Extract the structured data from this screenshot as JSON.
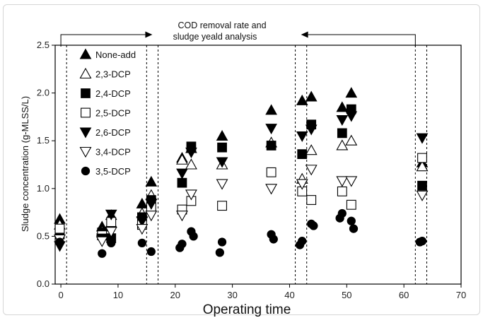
{
  "chart_data": {
    "type": "scatter",
    "title": "",
    "xlabel": "Operating time",
    "ylabel": "Sludge concentration (g-MLSS/L)",
    "xlim": [
      0,
      70
    ],
    "ylim": [
      0.0,
      2.5
    ],
    "x_ticks": [
      "0",
      "10",
      "20",
      "30",
      "40",
      "50",
      "60",
      "70"
    ],
    "y_ticks": [
      "0.0",
      "0.5",
      "1.0",
      "1.5",
      "2.0",
      "2.5"
    ],
    "legend_position": "top-left",
    "annotation": {
      "line1": "COD removal rate and",
      "line2": "sludge yeald analysis",
      "dashed_lines_x": [
        -1,
        1,
        15,
        17,
        41,
        43,
        62,
        64
      ],
      "span": [
        0,
        62
      ]
    },
    "series": [
      {
        "name": "None-add",
        "marker": "triangle-up-filled",
        "points": [
          [
            0,
            0.68
          ],
          [
            7,
            0.6
          ],
          [
            9,
            0.72
          ],
          [
            14,
            0.84
          ],
          [
            16,
            1.07
          ],
          [
            21,
            1.32
          ],
          [
            23,
            1.42
          ],
          [
            28,
            1.55
          ],
          [
            37,
            1.82
          ],
          [
            42,
            1.92
          ],
          [
            44,
            1.96
          ],
          [
            49,
            1.85
          ],
          [
            51,
            2.0
          ],
          [
            63,
            1.27
          ]
        ]
      },
      {
        "name": "2,3-DCP",
        "marker": "triangle-up-open",
        "points": [
          [
            0,
            0.62
          ],
          [
            7,
            0.55
          ],
          [
            9,
            0.64
          ],
          [
            14,
            0.74
          ],
          [
            16,
            0.93
          ],
          [
            21,
            1.3
          ],
          [
            23,
            1.25
          ],
          [
            28,
            1.25
          ],
          [
            37,
            1.48
          ],
          [
            42,
            1.1
          ],
          [
            44,
            1.4
          ],
          [
            49,
            1.45
          ],
          [
            51,
            1.5
          ],
          [
            63,
            1.23
          ]
        ]
      },
      {
        "name": "2,4-DCP",
        "marker": "square-filled",
        "points": [
          [
            0,
            0.52
          ],
          [
            7,
            0.54
          ],
          [
            9,
            0.48
          ],
          [
            14,
            0.7
          ],
          [
            16,
            0.88
          ],
          [
            21,
            1.06
          ],
          [
            23,
            1.44
          ],
          [
            28,
            1.43
          ],
          [
            37,
            1.45
          ],
          [
            42,
            1.36
          ],
          [
            44,
            1.67
          ],
          [
            49,
            1.58
          ],
          [
            51,
            1.83
          ],
          [
            63,
            1.03
          ]
        ]
      },
      {
        "name": "2,5-DCP",
        "marker": "square-open",
        "points": [
          [
            0,
            0.58
          ],
          [
            7,
            0.51
          ],
          [
            9,
            0.65
          ],
          [
            14,
            0.62
          ],
          [
            16,
            0.8
          ],
          [
            21,
            0.78
          ],
          [
            23,
            0.87
          ],
          [
            28,
            0.82
          ],
          [
            37,
            1.17
          ],
          [
            42,
            0.97
          ],
          [
            44,
            0.88
          ],
          [
            49,
            0.97
          ],
          [
            51,
            0.83
          ],
          [
            63,
            1.32
          ]
        ]
      },
      {
        "name": "2,6-DCP",
        "marker": "triangle-down-filled",
        "points": [
          [
            0,
            0.4
          ],
          [
            7,
            0.48
          ],
          [
            9,
            0.73
          ],
          [
            14,
            0.66
          ],
          [
            16,
            0.84
          ],
          [
            21,
            1.16
          ],
          [
            23,
            1.38
          ],
          [
            28,
            1.28
          ],
          [
            37,
            1.63
          ],
          [
            42,
            1.55
          ],
          [
            44,
            1.62
          ],
          [
            49,
            1.72
          ],
          [
            51,
            1.76
          ],
          [
            63,
            1.53
          ]
        ]
      },
      {
        "name": "3,4-DCP",
        "marker": "triangle-down-open",
        "points": [
          [
            0,
            0.47
          ],
          [
            7,
            0.45
          ],
          [
            9,
            0.55
          ],
          [
            14,
            0.58
          ],
          [
            16,
            0.72
          ],
          [
            21,
            0.72
          ],
          [
            23,
            0.94
          ],
          [
            28,
            1.05
          ],
          [
            37,
            1.0
          ],
          [
            42,
            1.05
          ],
          [
            44,
            1.2
          ],
          [
            49,
            1.08
          ],
          [
            51,
            1.08
          ],
          [
            63,
            0.93
          ]
        ]
      },
      {
        "name": "3,5-DCP",
        "marker": "circle-filled",
        "points": [
          [
            0,
            0.44
          ],
          [
            7,
            0.32
          ],
          [
            9,
            0.43
          ],
          [
            14,
            0.43
          ],
          [
            16,
            0.34
          ],
          [
            21,
            0.42
          ],
          [
            23,
            0.55
          ],
          [
            28,
            0.44
          ],
          [
            37,
            0.52
          ],
          [
            42,
            0.45
          ],
          [
            44,
            0.63
          ],
          [
            49,
            0.74
          ],
          [
            51,
            0.66
          ],
          [
            63,
            0.45
          ],
          [
            21,
            0.38
          ],
          [
            23,
            0.5
          ],
          [
            28,
            0.33
          ],
          [
            37,
            0.47
          ],
          [
            42,
            0.41
          ],
          [
            44,
            0.61
          ],
          [
            49,
            0.69
          ],
          [
            51,
            0.58
          ],
          [
            63,
            0.44
          ]
        ]
      }
    ]
  }
}
